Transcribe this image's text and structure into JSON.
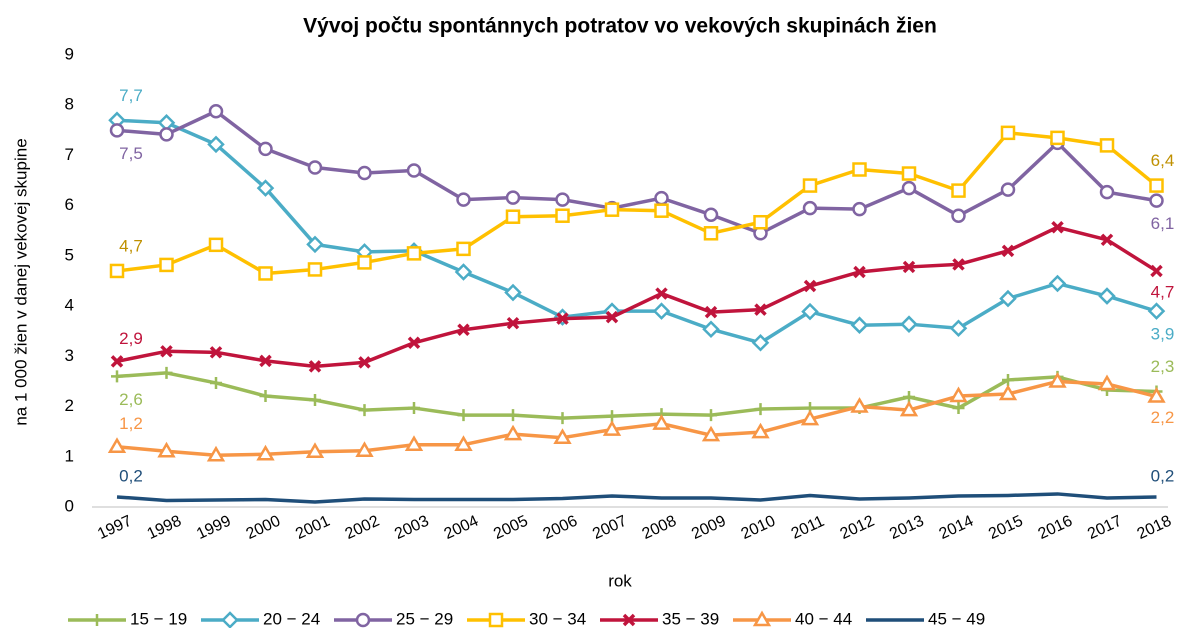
{
  "chart_data": {
    "type": "line",
    "title": "Vývoj počtu spontánnych potratov vo vekových skupinách žien",
    "x_label": "rok",
    "y_label": "na 1 000 žien v danej vekovej skupine",
    "categories": [
      "1997",
      "1998",
      "1999",
      "2000",
      "2001",
      "2002",
      "2003",
      "2004",
      "2005",
      "2006",
      "2007",
      "2008",
      "2009",
      "2010",
      "2011",
      "2012",
      "2013",
      "2014",
      "2015",
      "2016",
      "2017",
      "2018"
    ],
    "ylim": [
      0,
      9
    ],
    "yticks": [
      0,
      1,
      2,
      3,
      4,
      5,
      6,
      7,
      8,
      9
    ],
    "grid": false,
    "legend": "bottom",
    "series": [
      {
        "name": "15 − 19",
        "color": "#9bbb59",
        "marker": "plus",
        "values": [
          2.6,
          2.67,
          2.47,
          2.21,
          2.13,
          1.93,
          1.97,
          1.83,
          1.83,
          1.77,
          1.81,
          1.85,
          1.83,
          1.95,
          1.97,
          1.97,
          2.19,
          1.97,
          2.53,
          2.59,
          2.33,
          2.3
        ],
        "value_labels": [
          "2,6",
          null,
          null,
          null,
          null,
          null,
          null,
          null,
          null,
          null,
          null,
          null,
          null,
          null,
          null,
          null,
          null,
          null,
          null,
          null,
          null,
          "2,3"
        ]
      },
      {
        "name": "20 − 24",
        "color": "#4bacc6",
        "marker": "diamond",
        "values": [
          7.7,
          7.65,
          7.22,
          6.35,
          5.23,
          5.08,
          5.1,
          4.68,
          4.27,
          3.78,
          3.9,
          3.9,
          3.54,
          3.27,
          3.89,
          3.62,
          3.64,
          3.56,
          4.15,
          4.45,
          4.2,
          3.9
        ],
        "value_labels": [
          "7,7",
          null,
          null,
          null,
          null,
          null,
          null,
          null,
          null,
          null,
          null,
          null,
          null,
          null,
          null,
          null,
          null,
          null,
          null,
          null,
          null,
          "3,9"
        ]
      },
      {
        "name": "25 − 29",
        "color": "#8064a2",
        "marker": "circle",
        "values": [
          7.5,
          7.42,
          7.88,
          7.13,
          6.76,
          6.65,
          6.7,
          6.12,
          6.16,
          6.12,
          5.95,
          6.15,
          5.82,
          5.45,
          5.95,
          5.93,
          6.35,
          5.8,
          6.32,
          7.25,
          6.27,
          6.1
        ],
        "value_labels": [
          "7,5",
          null,
          null,
          null,
          null,
          null,
          null,
          null,
          null,
          null,
          null,
          null,
          null,
          null,
          null,
          null,
          null,
          null,
          null,
          null,
          null,
          "6,1"
        ]
      },
      {
        "name": "30 − 34",
        "color": "#ffc000",
        "marker": "square",
        "values": [
          4.7,
          4.82,
          5.22,
          4.65,
          4.73,
          4.87,
          5.05,
          5.14,
          5.78,
          5.8,
          5.92,
          5.9,
          5.45,
          5.67,
          6.4,
          6.72,
          6.64,
          6.3,
          7.45,
          7.35,
          7.2,
          6.4
        ],
        "value_labels": [
          "4,7",
          null,
          null,
          null,
          null,
          null,
          null,
          null,
          null,
          null,
          null,
          null,
          null,
          null,
          null,
          null,
          null,
          null,
          null,
          null,
          null,
          "6,4"
        ]
      },
      {
        "name": "35 − 39",
        "color": "#c0143c",
        "marker": "x",
        "values": [
          2.9,
          3.1,
          3.08,
          2.91,
          2.8,
          2.88,
          3.27,
          3.53,
          3.66,
          3.75,
          3.78,
          4.25,
          3.88,
          3.93,
          4.4,
          4.68,
          4.78,
          4.83,
          5.1,
          5.57,
          5.32,
          4.7
        ],
        "value_labels": [
          "2,9",
          null,
          null,
          null,
          null,
          null,
          null,
          null,
          null,
          null,
          null,
          null,
          null,
          null,
          null,
          null,
          null,
          null,
          null,
          null,
          null,
          "4,7"
        ]
      },
      {
        "name": "40 − 44",
        "color": "#f79646",
        "marker": "triangle",
        "values": [
          1.2,
          1.11,
          1.03,
          1.05,
          1.1,
          1.12,
          1.24,
          1.24,
          1.45,
          1.38,
          1.54,
          1.66,
          1.43,
          1.49,
          1.75,
          2.0,
          1.93,
          2.21,
          2.25,
          2.5,
          2.45,
          2.2
        ],
        "value_labels": [
          "1,2",
          null,
          null,
          null,
          null,
          null,
          null,
          null,
          null,
          null,
          null,
          null,
          null,
          null,
          null,
          null,
          null,
          null,
          null,
          null,
          null,
          "2,2"
        ]
      },
      {
        "name": "45 − 49",
        "color": "#1f4e79",
        "marker": "none",
        "values": [
          0.2,
          0.13,
          0.14,
          0.15,
          0.1,
          0.16,
          0.15,
          0.15,
          0.15,
          0.17,
          0.22,
          0.18,
          0.18,
          0.14,
          0.23,
          0.16,
          0.18,
          0.22,
          0.23,
          0.26,
          0.18,
          0.2
        ],
        "value_labels": [
          "0,2",
          null,
          null,
          null,
          null,
          null,
          null,
          null,
          null,
          null,
          null,
          null,
          null,
          null,
          null,
          null,
          null,
          null,
          null,
          null,
          null,
          "0,2"
        ]
      }
    ]
  }
}
